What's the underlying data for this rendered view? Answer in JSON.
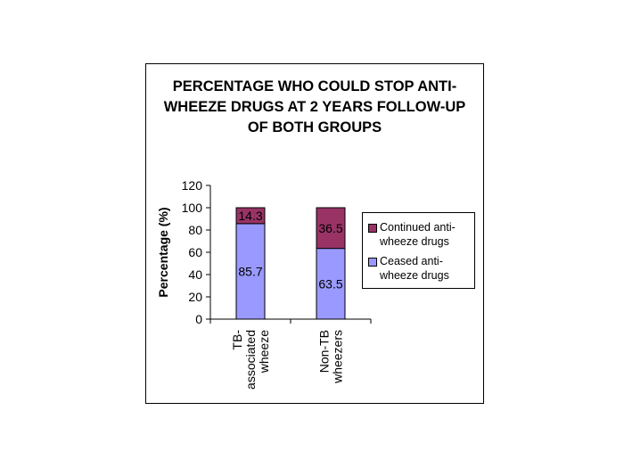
{
  "chart_data": {
    "type": "bar",
    "stacked": true,
    "title": "PERCENTAGE WHO COULD STOP ANTI-WHEEZE DRUGS AT 2 YEARS FOLLOW-UP OF BOTH GROUPS",
    "ylabel": "Percentage (%)",
    "xlabel": "",
    "ylim": [
      0,
      120
    ],
    "yticks": [
      0,
      20,
      40,
      60,
      80,
      100,
      120
    ],
    "grid": false,
    "legend_position": "right",
    "categories": [
      [
        "TB-",
        "associated",
        "wheeze"
      ],
      [
        "Non-TB",
        "wheezers"
      ]
    ],
    "series": [
      {
        "name": "Ceased anti-wheeze drugs",
        "values": [
          85.7,
          63.5
        ],
        "color": "#9999FF"
      },
      {
        "name": "Continued anti-wheeze drugs",
        "values": [
          14.3,
          36.5
        ],
        "color": "#993366"
      }
    ]
  }
}
